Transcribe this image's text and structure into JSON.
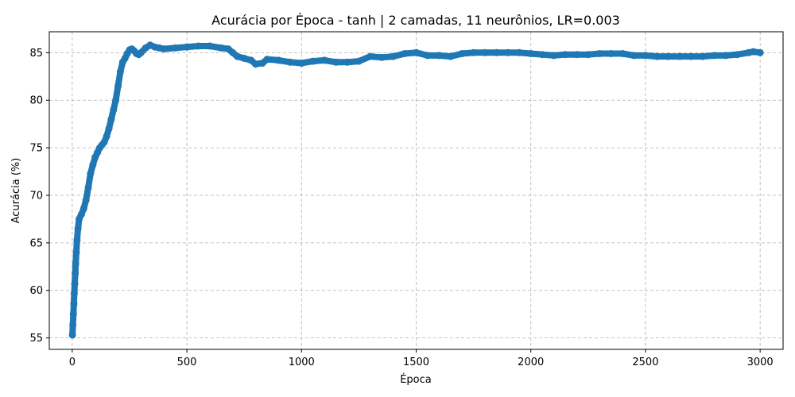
{
  "chart_data": {
    "type": "scatter",
    "title": "Acurácia por Época - tanh | 2 camadas, 11 neurônios, LR=0.003",
    "xlabel": "Época",
    "ylabel": "Acurácia (%)",
    "xlim": [
      -100,
      3100
    ],
    "ylim": [
      53.8,
      87.2
    ],
    "xticks": [
      0,
      500,
      1000,
      1500,
      2000,
      2500,
      3000
    ],
    "yticks": [
      55,
      60,
      65,
      70,
      75,
      80,
      85
    ],
    "grid": true,
    "marker_color": "#1f77b4",
    "series": [
      {
        "x": [
          1,
          3,
          5,
          7,
          9,
          11,
          13,
          15,
          18,
          21,
          25,
          30,
          40,
          50,
          60,
          70,
          80,
          90,
          100,
          110,
          120,
          130,
          140,
          150,
          160,
          170,
          180,
          190,
          200,
          210,
          220,
          230,
          240,
          250,
          260,
          270,
          280,
          290,
          300,
          320,
          340,
          360,
          380,
          400,
          450,
          500,
          550,
          600,
          650,
          680,
          700,
          720,
          750,
          780,
          800,
          830,
          850,
          900,
          950,
          1000,
          1050,
          1100,
          1150,
          1200,
          1250,
          1300,
          1350,
          1400,
          1450,
          1500,
          1550,
          1600,
          1650,
          1700,
          1750,
          1800,
          1850,
          1900,
          1950,
          2000,
          2050,
          2100,
          2150,
          2200,
          2250,
          2300,
          2350,
          2400,
          2450,
          2500,
          2550,
          2600,
          2650,
          2700,
          2750,
          2800,
          2850,
          2900,
          2950,
          2970,
          3000
        ],
        "y": [
          55.3,
          56.4,
          57.5,
          58.6,
          59.7,
          60.7,
          61.8,
          62.8,
          64.0,
          65.3,
          66.5,
          67.5,
          68.0,
          68.6,
          69.5,
          70.8,
          72.3,
          73.2,
          74.0,
          74.5,
          75.0,
          75.3,
          75.6,
          76.2,
          77.0,
          78.0,
          79.0,
          80.0,
          81.5,
          83.0,
          84.0,
          84.4,
          84.9,
          85.3,
          85.4,
          85.2,
          84.9,
          84.8,
          85.0,
          85.5,
          85.8,
          85.6,
          85.5,
          85.4,
          85.5,
          85.6,
          85.7,
          85.7,
          85.5,
          85.4,
          85.0,
          84.6,
          84.4,
          84.2,
          83.8,
          83.9,
          84.3,
          84.2,
          84.0,
          83.9,
          84.1,
          84.2,
          84.0,
          84.0,
          84.1,
          84.6,
          84.5,
          84.6,
          84.9,
          85.0,
          84.7,
          84.7,
          84.6,
          84.9,
          85.0,
          85.0,
          85.0,
          85.0,
          85.0,
          84.9,
          84.8,
          84.7,
          84.8,
          84.8,
          84.8,
          84.9,
          84.9,
          84.9,
          84.7,
          84.7,
          84.6,
          84.6,
          84.6,
          84.6,
          84.6,
          84.7,
          84.7,
          84.8,
          85.0,
          85.1,
          85.0
        ]
      }
    ]
  }
}
